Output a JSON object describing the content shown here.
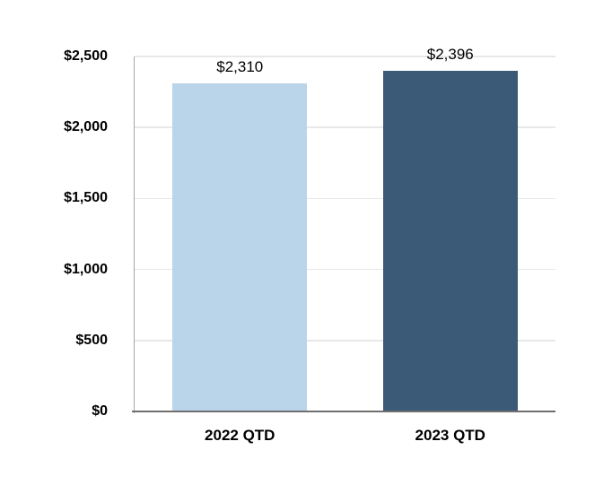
{
  "chart_data": {
    "type": "bar",
    "categories": [
      "2022 QTD",
      "2023 QTD"
    ],
    "values": [
      2310,
      2396
    ],
    "data_labels": [
      "$2,310",
      "$2,396"
    ],
    "bar_colors": [
      "#BAD5EA",
      "#3B5A77"
    ],
    "ylim": [
      0,
      2500
    ],
    "yticks": {
      "values": [
        0,
        500,
        1000,
        1500,
        2000,
        2500
      ],
      "labels": [
        "$0",
        "$500",
        "$1,000",
        "$1,500",
        "$2,000",
        "$2,500"
      ]
    },
    "grid": "horizontal",
    "legend": "none",
    "colors": {
      "gridline": "#E8E8E8",
      "y_axis_line": "#A6A6A6",
      "x_axis_line": "#6F6F6F",
      "text": "#000000",
      "background": "#FFFFFF"
    }
  }
}
